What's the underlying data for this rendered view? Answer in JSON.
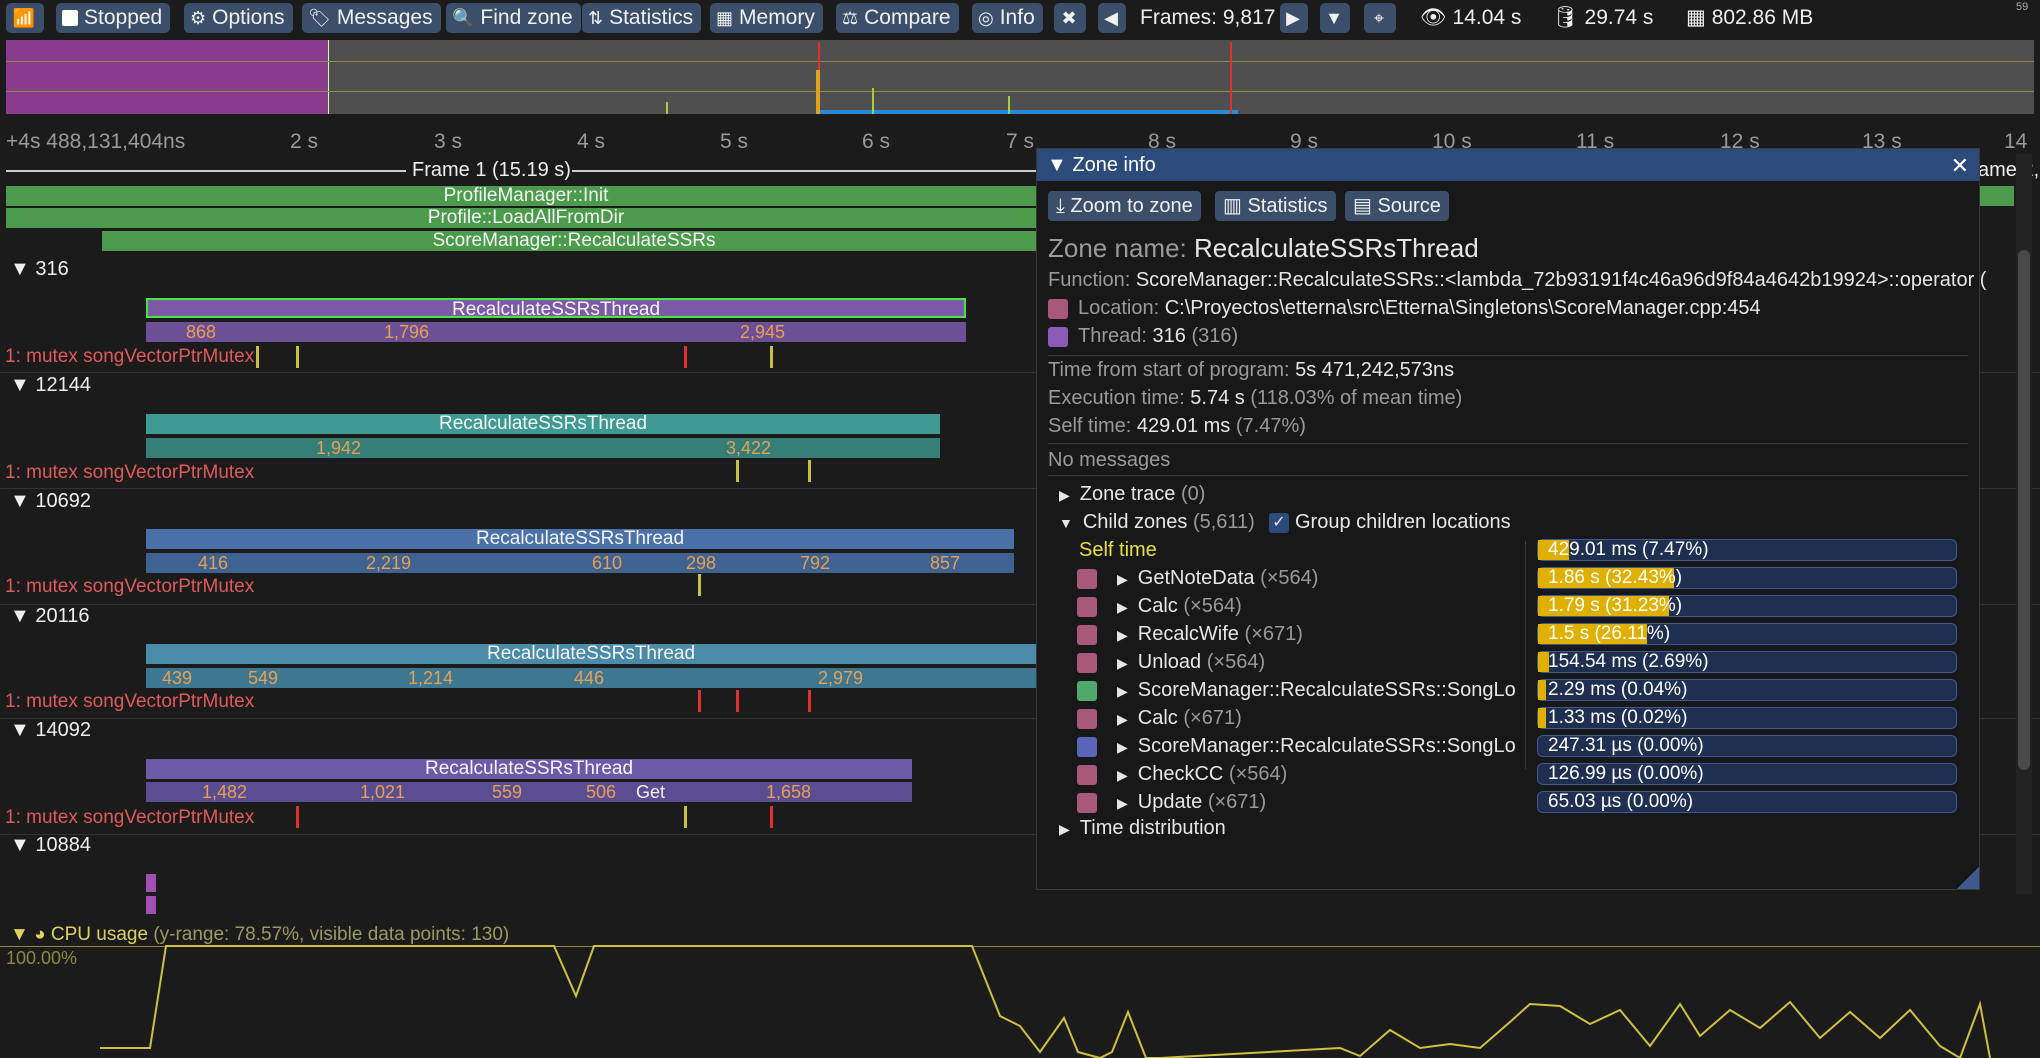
{
  "toolbar": {
    "stopped": "Stopped",
    "options": "Options",
    "messages": "Messages",
    "find_zone": "Find zone",
    "statistics": "Statistics",
    "memory": "Memory",
    "compare": "Compare",
    "info": "Info",
    "frames": "Frames: 9,817",
    "view_time": "14.04 s",
    "total_time": "29.74 s",
    "memory_usage": "802.86 MB",
    "fps_corner": "59"
  },
  "ruler": {
    "start": "+4s 488,131,404ns",
    "ticks": [
      "2 s",
      "3 s",
      "4 s",
      "5 s",
      "6 s",
      "7 s",
      "8 s",
      "9 s",
      "10 s",
      "11 s",
      "12 s",
      "13 s",
      "14"
    ]
  },
  "frame": {
    "label": "Frame 1 (15.19 s)",
    "label_right": "ame 2,"
  },
  "top_zones": [
    "ProfileManager::Init",
    "Profile::LoadAllFromDir",
    "ScoreManager::RecalculateSSRs"
  ],
  "threads": [
    {
      "id": "316",
      "zone": "RecalculateSSRsThread",
      "subs": [
        "868",
        "1,796",
        "2,945"
      ],
      "mutex": "1: mutex songVectorPtrMutex"
    },
    {
      "id": "12144",
      "zone": "RecalculateSSRsThread",
      "subs": [
        "1,942",
        "3,422"
      ],
      "mutex": "1: mutex songVectorPtrMutex"
    },
    {
      "id": "10692",
      "zone": "RecalculateSSRsThread",
      "subs": [
        "416",
        "2,219",
        "610",
        "298",
        "792",
        "857"
      ],
      "mutex": "1: mutex songVectorPtrMutex"
    },
    {
      "id": "20116",
      "zone": "RecalculateSSRsThread",
      "subs": [
        "439",
        "549",
        "1,214",
        "446",
        "2,979"
      ],
      "mutex": "1: mutex songVectorPtrMutex"
    },
    {
      "id": "14092",
      "zone": "RecalculateSSRsThread",
      "subs": [
        "1,482",
        "1,021",
        "559",
        "506",
        "Get",
        "1,658"
      ],
      "mutex": "1: mutex songVectorPtrMutex"
    },
    {
      "id": "10884"
    }
  ],
  "cpu": {
    "label": "CPU usage",
    "info": "(y-range: 78.57%, visible data points: 130)",
    "max": "100.00%"
  },
  "zone_info": {
    "title": "Zone info",
    "buttons": {
      "zoom": "Zoom to zone",
      "statistics": "Statistics",
      "source": "Source"
    },
    "zone_name_label": "Zone name:",
    "zone_name": "RecalculateSSRsThread",
    "function_label": "Function:",
    "function": "ScoreManager::RecalculateSSRs::<lambda_72b93191f4c46a96d9f84a4642b19924>::operator (",
    "location_label": "Location:",
    "location": "C:\\Proyectos\\etterna\\src\\Etterna\\Singletons\\ScoreManager.cpp:454",
    "thread_label": "Thread:",
    "thread": "316",
    "thread_paren": "(316)",
    "time_start_label": "Time from start of program:",
    "time_start": "5s 471,242,573ns",
    "exec_label": "Execution time:",
    "exec": "5.74 s",
    "exec_pct": "(118.03% of mean time)",
    "self_label": "Self time:",
    "self": "429.01 ms",
    "self_pct": "(7.47%)",
    "no_messages": "No messages",
    "zone_trace": "Zone trace",
    "zone_trace_count": "(0)",
    "child_zones": "Child zones",
    "child_zones_count": "(5,611)",
    "group_children": "Group children locations",
    "self_time_label": "Self time",
    "self_time_bar": "429.01 ms (7.47%)",
    "self_time_frac": 0.0747,
    "children": [
      {
        "name": "GetNoteData",
        "count": "(×564)",
        "value": "1.86 s (32.43%)",
        "frac": 0.3243,
        "color": "#a8587a"
      },
      {
        "name": "Calc",
        "count": "(×564)",
        "value": "1.79 s (31.23%)",
        "frac": 0.3123,
        "color": "#a8587a"
      },
      {
        "name": "RecalcWife",
        "count": "(×671)",
        "value": "1.5 s (26.11%)",
        "frac": 0.2611,
        "color": "#a8587a"
      },
      {
        "name": "Unload",
        "count": "(×564)",
        "value": "154.54 ms (2.69%)",
        "frac": 0.0269,
        "color": "#a8587a"
      },
      {
        "name": "ScoreManager::RecalculateSSRs::SongLo",
        "count": "",
        "value": "2.29 ms (0.04%)",
        "frac": 0.0004,
        "color": "#4fa86e"
      },
      {
        "name": "Calc",
        "count": "(×671)",
        "value": "1.33 ms (0.02%)",
        "frac": 0.0002,
        "color": "#a8587a"
      },
      {
        "name": "ScoreManager::RecalculateSSRs::SongLo",
        "count": "",
        "value": "247.31 µs (0.00%)",
        "frac": 0.0,
        "color": "#5a64b8"
      },
      {
        "name": "CheckCC",
        "count": "(×564)",
        "value": "126.99 µs (0.00%)",
        "frac": 0.0,
        "color": "#a8587a"
      },
      {
        "name": "Update",
        "count": "(×671)",
        "value": "65.03 µs (0.00%)",
        "frac": 0.0,
        "color": "#a8587a"
      }
    ],
    "time_distribution": "Time distribution",
    "colors": {
      "location": "#a8587a",
      "thread": "#8a5ab8"
    }
  }
}
